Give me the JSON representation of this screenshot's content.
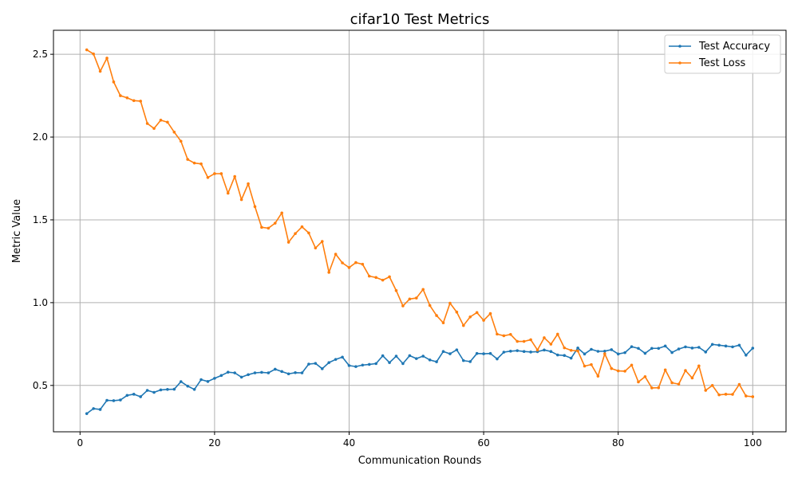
{
  "chart_data": {
    "type": "line",
    "title": "cifar10 Test Metrics",
    "xlabel": "Communication Rounds",
    "ylabel": "Metric Value",
    "xlim": [
      -3.95,
      104.95
    ],
    "ylim": [
      0.22,
      2.645
    ],
    "xticks": [
      0,
      20,
      40,
      60,
      80,
      100
    ],
    "yticks": [
      0.5,
      1.0,
      1.5,
      2.0,
      2.5
    ],
    "xtick_labels": [
      "0",
      "20",
      "40",
      "60",
      "80",
      "100"
    ],
    "ytick_labels": [
      "0.5",
      "1.0",
      "1.5",
      "2.0",
      "2.5"
    ],
    "grid": true,
    "legend_position": "top-right",
    "x": [
      1,
      2,
      3,
      4,
      5,
      6,
      7,
      8,
      9,
      10,
      11,
      12,
      13,
      14,
      15,
      16,
      17,
      18,
      19,
      20,
      21,
      22,
      23,
      24,
      25,
      26,
      27,
      28,
      29,
      30,
      31,
      32,
      33,
      34,
      35,
      36,
      37,
      38,
      39,
      40,
      41,
      42,
      43,
      44,
      45,
      46,
      47,
      48,
      49,
      50,
      51,
      52,
      53,
      54,
      55,
      56,
      57,
      58,
      59,
      60,
      61,
      62,
      63,
      64,
      65,
      66,
      67,
      68,
      69,
      70,
      71,
      72,
      73,
      74,
      75,
      76,
      77,
      78,
      79,
      80,
      81,
      82,
      83,
      84,
      85,
      86,
      87,
      88,
      89,
      90,
      91,
      92,
      93,
      94,
      95,
      96,
      97,
      98,
      99,
      100
    ],
    "series": [
      {
        "name": "Test Accuracy",
        "color": "#1f77b4",
        "values": [
          0.33,
          0.36,
          0.355,
          0.41,
          0.408,
          0.412,
          0.44,
          0.447,
          0.432,
          0.47,
          0.458,
          0.473,
          0.476,
          0.477,
          0.523,
          0.496,
          0.476,
          0.535,
          0.524,
          0.543,
          0.56,
          0.58,
          0.576,
          0.55,
          0.565,
          0.576,
          0.579,
          0.576,
          0.598,
          0.584,
          0.57,
          0.577,
          0.576,
          0.629,
          0.633,
          0.601,
          0.638,
          0.657,
          0.671,
          0.62,
          0.614,
          0.623,
          0.627,
          0.632,
          0.679,
          0.638,
          0.677,
          0.632,
          0.68,
          0.662,
          0.677,
          0.654,
          0.643,
          0.705,
          0.691,
          0.715,
          0.65,
          0.644,
          0.693,
          0.691,
          0.693,
          0.66,
          0.701,
          0.707,
          0.71,
          0.705,
          0.702,
          0.704,
          0.714,
          0.705,
          0.684,
          0.681,
          0.665,
          0.726,
          0.69,
          0.718,
          0.706,
          0.707,
          0.716,
          0.69,
          0.698,
          0.734,
          0.724,
          0.694,
          0.724,
          0.724,
          0.738,
          0.699,
          0.72,
          0.733,
          0.726,
          0.73,
          0.702,
          0.748,
          0.743,
          0.738,
          0.733,
          0.743,
          0.683,
          0.725
        ]
      },
      {
        "name": "Test Loss",
        "color": "#ff7f0e",
        "values": [
          2.527,
          2.502,
          2.397,
          2.477,
          2.333,
          2.25,
          2.237,
          2.22,
          2.217,
          2.082,
          2.052,
          2.102,
          2.09,
          2.03,
          1.975,
          1.865,
          1.843,
          1.838,
          1.756,
          1.779,
          1.779,
          1.661,
          1.762,
          1.622,
          1.718,
          1.58,
          1.455,
          1.45,
          1.48,
          1.542,
          1.365,
          1.417,
          1.458,
          1.421,
          1.33,
          1.37,
          1.183,
          1.293,
          1.24,
          1.212,
          1.242,
          1.232,
          1.16,
          1.152,
          1.136,
          1.156,
          1.073,
          0.98,
          1.022,
          1.028,
          1.08,
          0.983,
          0.922,
          0.878,
          0.997,
          0.943,
          0.862,
          0.914,
          0.94,
          0.893,
          0.934,
          0.81,
          0.8,
          0.808,
          0.766,
          0.766,
          0.776,
          0.714,
          0.788,
          0.749,
          0.81,
          0.727,
          0.712,
          0.708,
          0.617,
          0.626,
          0.556,
          0.691,
          0.602,
          0.588,
          0.586,
          0.623,
          0.521,
          0.553,
          0.485,
          0.486,
          0.594,
          0.516,
          0.508,
          0.59,
          0.545,
          0.618,
          0.47,
          0.5,
          0.443,
          0.447,
          0.446,
          0.506,
          0.436,
          0.432
        ]
      }
    ]
  }
}
